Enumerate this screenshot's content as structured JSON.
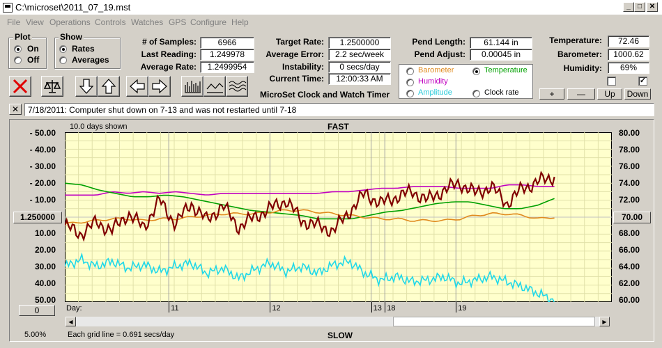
{
  "window": {
    "title": "C:\\microset\\2011_07_19.mst"
  },
  "menu": [
    "File",
    "View",
    "Operations",
    "Controls",
    "Watches",
    "GPS",
    "Configure",
    "Help"
  ],
  "plot_group": {
    "title": "Plot",
    "options": [
      "On",
      "Off"
    ],
    "selected": "On"
  },
  "show_group": {
    "title": "Show",
    "options": [
      "Rates",
      "Averages"
    ],
    "selected": "Rates"
  },
  "stats": {
    "samples_label": "# of Samples:",
    "samples": "6966",
    "last_label": "Last Reading:",
    "last": "1.249978",
    "avg_label": "Average Rate:",
    "avg": "1.2499954",
    "target_label": "Target Rate:",
    "target": "1.2500000",
    "error_label": "Average Error:",
    "error": "2.2 sec/week",
    "instab_label": "Instability:",
    "instab": "0 secs/day",
    "time_label": "Current Time:",
    "time": "12:00:33 AM",
    "pend_len_label": "Pend Length:",
    "pend_len": "61.144 in",
    "pend_adj_label": "Pend Adjust:",
    "pend_adj": "0.00045 in",
    "temp_label": "Temperature:",
    "temp": "72.46",
    "baro_label": "Barometer:",
    "baro": "1000.62",
    "hum_label": "Humidity:",
    "hum": "69%"
  },
  "app_title": "MicroSet Clock and Watch Timer",
  "sensor_options": [
    {
      "label": "Barometer",
      "color": "#e08a1e",
      "selected": false
    },
    {
      "label": "Temperature",
      "color": "#00a000",
      "selected": true
    },
    {
      "label": "Humidity",
      "color": "#c000c0",
      "selected": false
    },
    {
      "label": "Clock rate",
      "color": "#000000",
      "selected": false
    },
    {
      "label": "Amplitude",
      "color": "#20c8d8",
      "selected": false
    }
  ],
  "side_buttons": {
    "plus": "+",
    "minus": "—",
    "up": "Up",
    "down": "Down"
  },
  "checkbox_right_checked": "✓",
  "note": "7/18/2011: Computer shut down on 7-13 and was not restarted until 7-18",
  "note_close": "✕",
  "chart_data": {
    "type": "line",
    "title_top": "FAST",
    "title_bottom": "SLOW",
    "days_shown": "10.0 days shown",
    "left_ticks": [
      "- 50.00",
      "- 40.00",
      "- 30.00",
      "- 20.00",
      "- 10.00",
      "1.250000",
      "10.00",
      "20.00",
      "30.00",
      "40.00",
      "50.00"
    ],
    "right_ticks": [
      "80.00",
      "78.00",
      "76.00",
      "74.00",
      "72.00",
      "70.00",
      "68.00",
      "66.00",
      "64.00",
      "62.00",
      "60.00"
    ],
    "left_box": "1.250000",
    "right_box": "70.00",
    "bottom_left_box": "0",
    "x_label": "Day:",
    "day_ticks": [
      "11",
      "12",
      "13",
      "18",
      "19"
    ],
    "ylim_left": [
      50,
      -50
    ],
    "ylim_right": [
      60,
      80
    ],
    "series": [
      {
        "color": "#c000c0",
        "values": [
          13,
          13,
          13,
          15,
          14,
          15,
          14,
          15,
          14,
          13,
          14,
          14,
          14,
          14,
          14,
          14,
          14,
          15,
          15,
          16,
          17,
          17,
          18,
          18,
          18,
          17,
          17,
          17,
          19,
          19,
          18,
          18
        ]
      },
      {
        "color": "#00a000",
        "values": [
          20,
          19,
          16,
          14,
          12,
          12,
          13,
          12,
          10,
          8,
          6,
          4,
          3,
          2,
          1,
          -1,
          -1,
          -1,
          1,
          3,
          4,
          6,
          8,
          9,
          9,
          7,
          5,
          5,
          7,
          11
        ]
      },
      {
        "color": "#e08a1e",
        "values": [
          -4,
          -3,
          -2,
          -1,
          -1,
          -2,
          -1,
          -1,
          0,
          1,
          2,
          2,
          2,
          3,
          4,
          4,
          3,
          2,
          1,
          0,
          -1,
          -1,
          -2,
          -2,
          -2,
          -1,
          1,
          2,
          2,
          1,
          -1,
          0
        ]
      },
      {
        "color": "#800000",
        "values": [
          -5,
          -10,
          -3,
          -8,
          2,
          -6,
          10,
          -4,
          8,
          -2,
          7,
          -6,
          0,
          5,
          10,
          -2,
          -5,
          -8,
          3,
          14,
          8,
          12,
          15,
          10,
          16,
          20,
          14,
          18,
          8,
          17,
          21,
          24
        ]
      },
      {
        "color": "#20d8e8",
        "values": [
          -29,
          -25,
          -29,
          -26,
          -30,
          -28,
          -32,
          -29,
          -27,
          -33,
          -30,
          -36,
          -31,
          -27,
          -32,
          -29,
          -33,
          -28,
          -26,
          -33,
          -37,
          -35,
          -38,
          -37,
          -35,
          -39,
          -37,
          -35,
          -38,
          -41,
          -45,
          -49
        ]
      }
    ]
  },
  "grid_info": "Each grid line = 0.691 secs/day",
  "zoom": "5.00%"
}
